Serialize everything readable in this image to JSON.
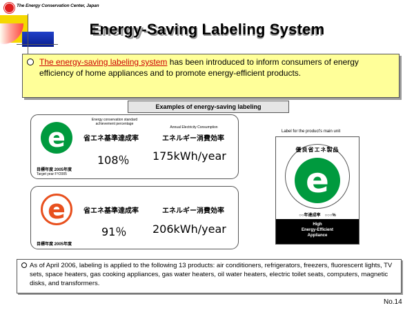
{
  "header": {
    "org_name": "The Energy Conservation Center, Japan",
    "title": "Energy-Saving Labeling System"
  },
  "intro": {
    "link_text": "The energy-saving labeling system",
    "rest_text": " has been introduced to inform consumers of energy efficiency of home appliances  and to promote energy-efficient products."
  },
  "examples_label": "Examples of energy-saving labeling",
  "card1": {
    "en_rate_caption_line1": "Energy conservation standard",
    "en_rate_caption_line2": "achievement percentage",
    "en_consumption_caption": "Annual Electricity Consumption",
    "jp_rate_heading": "省エネ基準達成率",
    "jp_consumption_heading": "エネルギー消費効率",
    "rate_value": "108％",
    "consumption_value": "175kWh/year",
    "target_year_jp": "目標年度 2005年度",
    "target_year_en": "Target year FY2005",
    "mark_letter": "e"
  },
  "card2": {
    "jp_rate_heading": "省エネ基準達成率",
    "jp_consumption_heading": "エネルギー消費効率",
    "rate_value": "91％",
    "consumption_value": "206kWh/year",
    "target_year_jp": "目標年度 2005年度",
    "mark_letter": "e"
  },
  "product_label": {
    "caption": "Label for the product's main unit",
    "arc_text": "優良省エネ製品",
    "mark_letter": "e",
    "rate_text": "○○年達成率　○○○%",
    "black_line1": "High",
    "black_line2": "Energy-Efficient",
    "black_line3": "Appliance"
  },
  "bottom_note": "As of April 2006, labeling is applied to the following 13 products: air conditioners, refrigerators, freezers, fluorescent lights, TV sets, space heaters, gas cooking appliances, gas water heaters, oil water heaters, electric toilet seats, computers, magnetic disks, and transformers.",
  "page_number": "No.14",
  "colors": {
    "green_mark": "#009a3e",
    "orange_mark": "#e8501e",
    "intro_bg": "#ffff99",
    "link_red": "#cc0000"
  }
}
